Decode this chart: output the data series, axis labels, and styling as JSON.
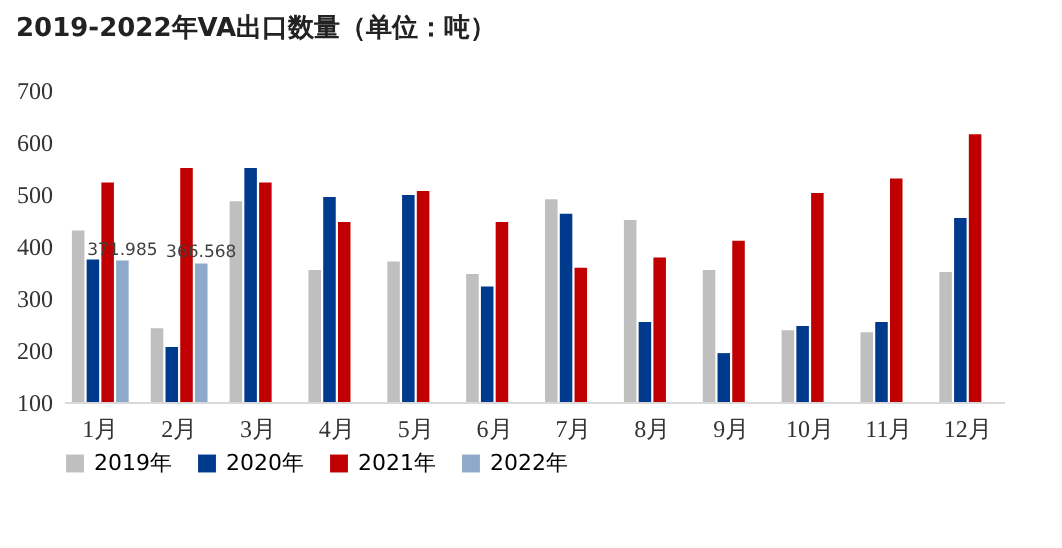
{
  "chart_data": {
    "type": "bar",
    "title": "2019-2022年VA出口数量（单位：吨）",
    "categories": [
      "1月",
      "2月",
      "3月",
      "4月",
      "5月",
      "6月",
      "7月",
      "8月",
      "9月",
      "10月",
      "11月",
      "12月"
    ],
    "series": [
      {
        "name": "2019年",
        "color": "#bfbfbf",
        "values": [
          430,
          242,
          486,
          354,
          370,
          346,
          490,
          450,
          354,
          238,
          234,
          350
        ]
      },
      {
        "name": "2020年",
        "color": "#003a8c",
        "values": [
          374,
          206,
          550,
          494,
          498,
          322,
          462,
          254,
          194,
          246,
          254,
          454
        ]
      },
      {
        "name": "2021年",
        "color": "#c00000",
        "values": [
          522,
          550,
          522,
          446,
          506,
          446,
          358,
          378,
          410,
          502,
          530,
          615
        ]
      },
      {
        "name": "2022年",
        "color": "#8ea9c9",
        "values": [
          371.985,
          366.568,
          null,
          null,
          null,
          null,
          null,
          null,
          null,
          null,
          null,
          null
        ],
        "value_labels": [
          "371.985",
          "366.568",
          null,
          null,
          null,
          null,
          null,
          null,
          null,
          null,
          null,
          null
        ]
      }
    ],
    "ylim": [
      100,
      700
    ],
    "yticks": [
      100,
      200,
      300,
      400,
      500,
      600,
      700
    ],
    "grid": false,
    "legend": "bottom"
  }
}
